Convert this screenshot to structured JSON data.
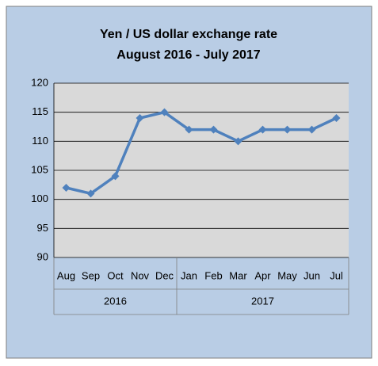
{
  "chart_data": {
    "type": "line",
    "title": "Yen / US dollar exchange rate",
    "subtitle": "August 2016 - July 2017",
    "categories": [
      "Aug",
      "Sep",
      "Oct",
      "Nov",
      "Dec",
      "Jan",
      "Feb",
      "Mar",
      "Apr",
      "May",
      "Jun",
      "Jul"
    ],
    "category_groups": [
      {
        "label": "2016",
        "span": 5
      },
      {
        "label": "2017",
        "span": 7
      }
    ],
    "values": [
      102,
      101,
      104,
      114,
      115,
      112,
      112,
      110,
      112,
      112,
      112,
      114
    ],
    "color": "#4f81bd",
    "ylim": [
      90,
      120
    ],
    "yticks": [
      90,
      95,
      100,
      105,
      110,
      115,
      120
    ],
    "grid": true
  }
}
